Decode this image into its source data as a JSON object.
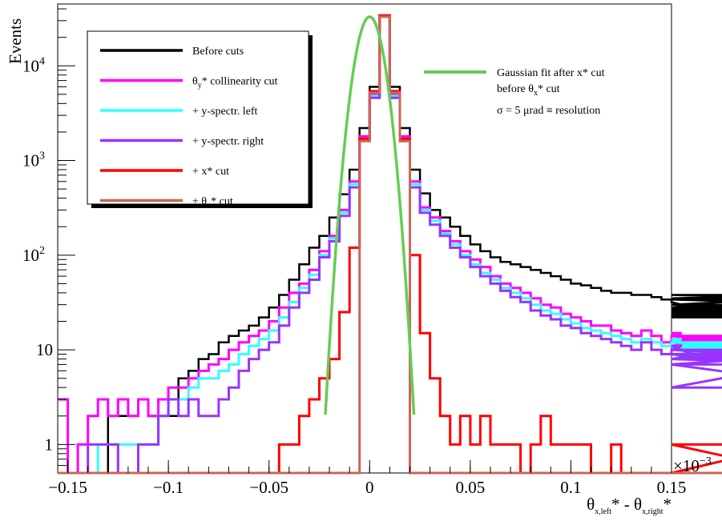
{
  "chart_data": {
    "type": "line",
    "xlabel": "θ",
    "xlabel_sub": "x,left",
    "xlabel_mid": "* - θ",
    "xlabel_sub2": "x,right",
    "xlabel_tail": "*",
    "ylabel": "Events",
    "x_exponent_label": "×10",
    "x_exponent": "−3",
    "xlim": [
      -0.155,
      0.15
    ],
    "ylim": [
      0.5,
      45000
    ],
    "yscale": "log",
    "grid": false,
    "x_ticks": [
      {
        "value": -0.15,
        "label": "−0.15"
      },
      {
        "value": -0.1,
        "label": "−0.1"
      },
      {
        "value": -0.05,
        "label": "−0.05"
      },
      {
        "value": 0,
        "label": "0"
      },
      {
        "value": 0.05,
        "label": "0.05"
      },
      {
        "value": 0.1,
        "label": "0.1"
      },
      {
        "value": 0.15,
        "label": "0.15"
      }
    ],
    "y_ticks": [
      {
        "value": 1,
        "base": "1",
        "exp": ""
      },
      {
        "value": 10,
        "base": "10",
        "exp": ""
      },
      {
        "value": 100,
        "base": "10",
        "exp": "2"
      },
      {
        "value": 1000,
        "base": "10",
        "exp": "3"
      },
      {
        "value": 10000,
        "base": "10",
        "exp": "4"
      }
    ],
    "bin_width": 0.005,
    "bin_start": -0.155,
    "series": [
      {
        "name": "Before cuts",
        "color": "#000000",
        "values": [
          0,
          0,
          0,
          0,
          0,
          2,
          2,
          2,
          3,
          2,
          2,
          2,
          5,
          6,
          8,
          9,
          12,
          14,
          16,
          18,
          22,
          28,
          38,
          55,
          80,
          120,
          160,
          250,
          440,
          800,
          2200,
          6000,
          34000,
          6000,
          2200,
          800,
          450,
          300,
          250,
          200,
          160,
          130,
          110,
          95,
          85,
          80,
          75,
          70,
          65,
          60,
          55,
          50,
          48,
          45,
          42,
          40,
          40,
          38,
          38,
          36,
          34,
          32,
          30,
          28,
          28,
          26,
          27,
          25,
          25,
          24,
          22,
          23,
          26,
          30,
          35,
          38,
          34,
          30,
          26,
          28,
          27,
          26,
          28
        ]
      },
      {
        "name": "θy* collinearity cut",
        "color": "#ff00ff",
        "values": [
          3,
          0,
          1,
          2,
          3,
          2,
          3,
          2,
          3,
          2,
          3,
          4,
          4,
          5,
          6,
          7,
          8,
          10,
          12,
          14,
          16,
          20,
          28,
          40,
          50,
          70,
          110,
          160,
          300,
          600,
          1800,
          5000,
          34000,
          5000,
          1800,
          600,
          320,
          250,
          180,
          140,
          110,
          90,
          75,
          60,
          50,
          45,
          40,
          35,
          30,
          28,
          24,
          22,
          20,
          18,
          18,
          16,
          15,
          14,
          16,
          14,
          12,
          14,
          15,
          12,
          11,
          13,
          12,
          14,
          12,
          13,
          14,
          12,
          11,
          14,
          12,
          13,
          14,
          12,
          11,
          13,
          12,
          11,
          14
        ]
      },
      {
        "name": "+ y-spectr. left",
        "color": "#33ffff",
        "values": [
          0,
          0,
          0,
          0,
          1,
          1,
          1,
          1,
          1,
          1,
          2,
          3,
          3,
          4,
          5,
          5,
          6,
          7,
          9,
          11,
          13,
          16,
          22,
          32,
          45,
          62,
          100,
          150,
          280,
          560,
          1700,
          4800,
          34000,
          4800,
          1700,
          560,
          300,
          230,
          170,
          130,
          100,
          80,
          65,
          55,
          45,
          40,
          35,
          30,
          26,
          24,
          21,
          19,
          17,
          16,
          15,
          14,
          13,
          12,
          13,
          12,
          11,
          12,
          13,
          11,
          10,
          11,
          10,
          12,
          11,
          10,
          12,
          11,
          10,
          11,
          10,
          11,
          12,
          10,
          9,
          11,
          10,
          9,
          12
        ]
      },
      {
        "name": "+ y-spectr. right",
        "color": "#9933ff",
        "values": [
          0,
          0,
          0,
          1,
          1,
          1,
          0,
          0,
          1,
          1,
          2,
          3,
          2,
          3,
          2,
          2,
          3,
          4,
          6,
          8,
          10,
          12,
          18,
          28,
          40,
          55,
          95,
          140,
          260,
          520,
          1650,
          4600,
          34000,
          4600,
          1650,
          520,
          280,
          210,
          160,
          120,
          95,
          75,
          60,
          50,
          42,
          36,
          32,
          26,
          23,
          21,
          18,
          17,
          15,
          14,
          13,
          12,
          11,
          10,
          12,
          10,
          9,
          10,
          11,
          9,
          8,
          9,
          8,
          10,
          9,
          8,
          9,
          8,
          8,
          9,
          8,
          9,
          8,
          7,
          4,
          9,
          8,
          7,
          10
        ]
      },
      {
        "name": "+ x* cut",
        "color": "#ff0000",
        "values": [
          0,
          0,
          0,
          0,
          0,
          0,
          0,
          0,
          0,
          0,
          0,
          0,
          0,
          0,
          0,
          0,
          0,
          0,
          0,
          0,
          0,
          0,
          1,
          1,
          2,
          3,
          5,
          8,
          25,
          120,
          1700,
          5400,
          34000,
          5400,
          1700,
          100,
          15,
          5,
          2,
          1,
          2,
          1,
          2,
          1,
          1,
          1,
          0,
          1,
          2,
          1,
          1,
          1,
          1,
          0,
          0,
          1,
          0,
          0,
          0,
          0,
          0,
          0,
          0,
          0,
          0,
          0,
          0,
          0,
          0,
          0,
          0,
          0,
          0,
          1,
          0,
          0,
          0,
          0,
          0,
          0,
          0,
          0,
          0
        ]
      },
      {
        "name": "+ θx* cut",
        "color": "#cc6655",
        "values": [
          0,
          0,
          0,
          0,
          0,
          0,
          0,
          0,
          0,
          0,
          0,
          0,
          0,
          0,
          0,
          0,
          0,
          0,
          0,
          0,
          0,
          0,
          0,
          0,
          0,
          0,
          0,
          0,
          0,
          0,
          1600,
          5200,
          33000,
          5200,
          1600,
          0,
          0,
          0,
          0,
          0,
          0,
          0,
          0,
          0,
          0,
          0,
          0,
          0,
          0,
          0,
          0,
          0,
          0,
          0,
          0,
          0,
          0,
          0,
          0,
          0,
          0,
          0,
          0,
          0,
          0,
          0,
          0,
          0,
          0,
          0,
          0,
          0,
          0,
          0,
          0,
          0,
          0,
          0,
          0,
          0,
          0
        ]
      },
      {
        "name": "Gaussian fit after x* cut",
        "color": "#66cc55",
        "type": "gaussian",
        "amplitude": 33000,
        "mean": 0,
        "sigma": 0.005,
        "range": [
          -0.022,
          0.022
        ]
      }
    ],
    "legend": {
      "position": "top-left",
      "entries": [
        {
          "text": "Before cuts",
          "color": "#000000"
        },
        {
          "text": "θ",
          "sub": "y",
          "tail": "* collinearity cut",
          "color": "#ff00ff"
        },
        {
          "text": "+ y-spectr. left",
          "color": "#33ffff"
        },
        {
          "text": "+ y-spectr. right",
          "color": "#9933ff"
        },
        {
          "text": "+ x* cut",
          "color": "#ff0000"
        },
        {
          "text": "+ θ",
          "sub": "x",
          "tail": "* cut",
          "color": "#cc6655"
        }
      ]
    },
    "annotation": {
      "color": "#66cc55",
      "line1": "Gaussian fit after x* cut",
      "line2_pre": "before θ",
      "line2_sub": "x",
      "line2_tail": "* cut",
      "line3": "σ = 5 μrad ≡ resolution"
    }
  }
}
